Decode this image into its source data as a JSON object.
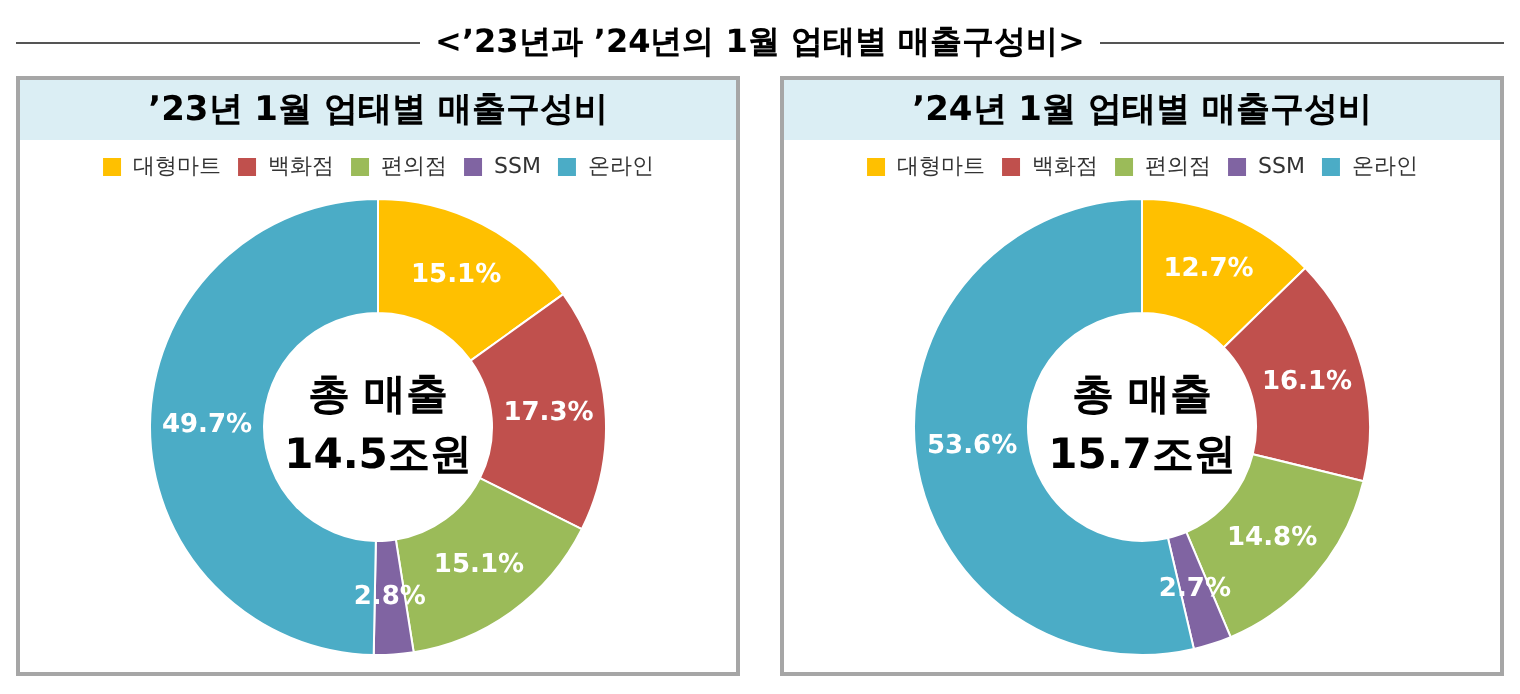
{
  "chart_data": [
    {
      "type": "other",
      "title": "<’23년과 ’24년의 1월 업태별 매출구성비>"
    },
    {
      "type": "donut",
      "title": "’23년 1월 업태별 매출구성비",
      "categories": [
        "대형마트",
        "백화점",
        "편의점",
        "SSM",
        "온라인"
      ],
      "values": [
        15.1,
        17.3,
        15.1,
        2.8,
        49.7
      ],
      "colors": [
        "#ffc000",
        "#c0504d",
        "#9bbb59",
        "#8064a2",
        "#4bacc6"
      ],
      "value_labels": [
        "15.1%",
        "17.3%",
        "15.1%",
        "2.8%",
        "49.7%"
      ],
      "annotations": [
        "총 매출",
        "14.5조원"
      ],
      "legend": "top"
    },
    {
      "type": "donut",
      "title": "’24년 1월 업태별 매출구성비",
      "categories": [
        "대형마트",
        "백화점",
        "편의점",
        "SSM",
        "온라인"
      ],
      "values": [
        12.7,
        16.1,
        14.8,
        2.7,
        53.6
      ],
      "colors": [
        "#ffc000",
        "#c0504d",
        "#9bbb59",
        "#8064a2",
        "#4bacc6"
      ],
      "value_labels": [
        "12.7%",
        "16.1%",
        "14.8%",
        "2.7%",
        "53.6%"
      ],
      "annotations": [
        "총 매출",
        "15.7조원"
      ],
      "legend": "top"
    }
  ]
}
